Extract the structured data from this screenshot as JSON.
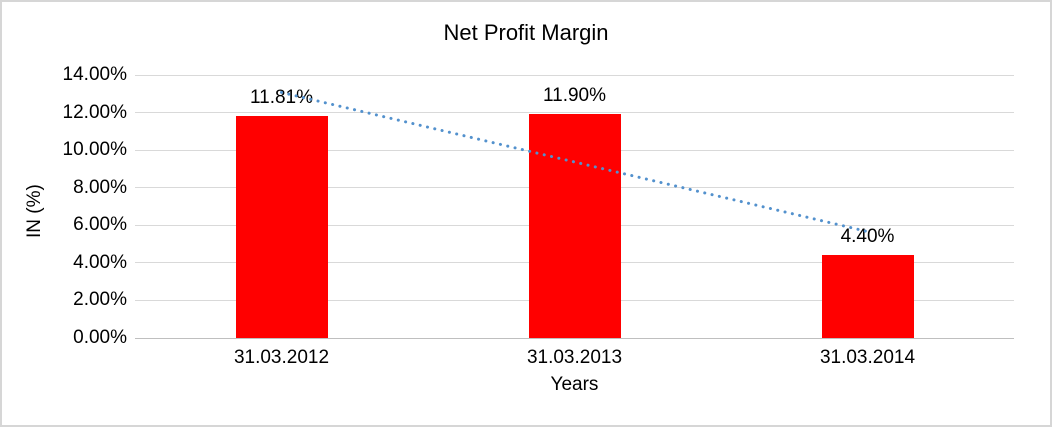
{
  "chart_data": {
    "type": "bar",
    "title": "Net Profit Margin",
    "xlabel": "Years",
    "ylabel": "IN (%)",
    "categories": [
      "31.03.2012",
      "31.03.2013",
      "31.03.2014"
    ],
    "values": [
      11.81,
      11.9,
      4.4
    ],
    "value_labels": [
      "11.81%",
      "11.90%",
      "4.40%"
    ],
    "ylim": [
      0,
      14
    ],
    "y_tick_step": 2,
    "y_tick_labels": [
      "0.00%",
      "2.00%",
      "4.00%",
      "6.00%",
      "8.00%",
      "10.00%",
      "12.00%",
      "14.00%"
    ],
    "grid": true,
    "legend": "none",
    "bar_color": "#ff0000",
    "gridline_color": "#d9d9d9",
    "axis_line_color": "#bfbfbf",
    "text_color": "#000000",
    "trendline": {
      "type": "linear",
      "style": "dotted",
      "color": "#5391cd"
    }
  }
}
